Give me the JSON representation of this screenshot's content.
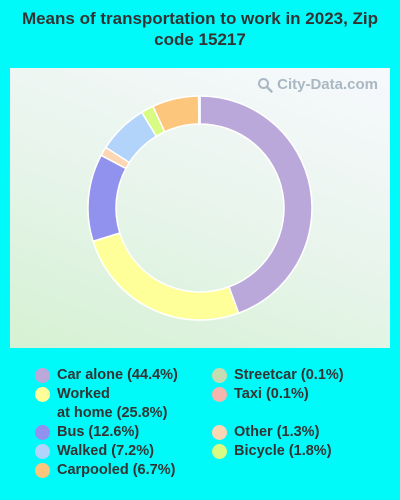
{
  "title": "Means of transportation to work in 2023, Zip code 15217",
  "watermark": "City-Data.com",
  "chart_data": {
    "type": "pie",
    "donut": true,
    "title": "Means of transportation to work in 2023, Zip code 15217",
    "legend_position": "bottom",
    "slices": [
      {
        "label": "Car alone",
        "legend": "Car alone (44.4%)",
        "value": 44.4,
        "color": "#bba8da"
      },
      {
        "label": "Worked at home",
        "legend": "Worked\nat home (25.8%)",
        "value": 25.8,
        "color": "#ffff99"
      },
      {
        "label": "Bus",
        "legend": "Bus (12.6%)",
        "value": 12.6,
        "color": "#9191ee"
      },
      {
        "label": "Other",
        "legend": "Other (1.3%)",
        "value": 1.3,
        "color": "#fdd6b3"
      },
      {
        "label": "Walked",
        "legend": "Walked (7.2%)",
        "value": 7.2,
        "color": "#b2d4fb"
      },
      {
        "label": "Bicycle",
        "legend": "Bicycle (1.8%)",
        "value": 1.8,
        "color": "#d7fb83"
      },
      {
        "label": "Carpooled",
        "legend": "Carpooled (6.7%)",
        "value": 6.7,
        "color": "#fdc67d"
      },
      {
        "label": "Streetcar",
        "legend": "Streetcar (0.1%)",
        "value": 0.1,
        "color": "#c3dcb1"
      },
      {
        "label": "Taxi",
        "legend": "Taxi (0.1%)",
        "value": 0.1,
        "color": "#f3b5ac"
      }
    ],
    "legend_order": [
      "Car alone",
      "Streetcar",
      "Worked at home",
      "Taxi",
      "Bus",
      "Other",
      "Walked",
      "Bicycle",
      "Carpooled"
    ]
  }
}
